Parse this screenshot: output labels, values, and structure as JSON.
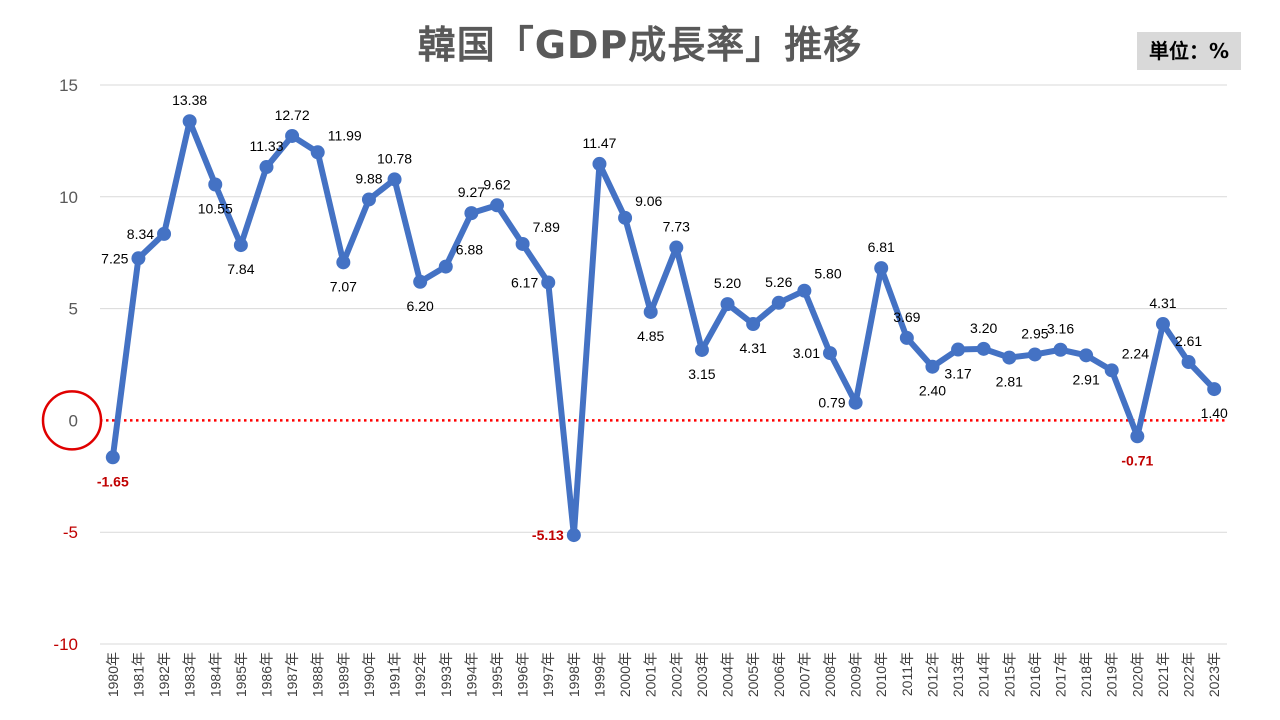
{
  "chart_data": {
    "type": "line",
    "title": "韓国「GDP成長率」推移",
    "unit": "単位：%",
    "xlabel": "",
    "ylabel": "",
    "ylim": [
      -10,
      15
    ],
    "yticks": [
      15,
      10,
      5,
      0,
      -5,
      -10
    ],
    "grid": true,
    "zero_line": {
      "value": 0,
      "style": "dotted",
      "color": "#ff0000"
    },
    "highlight": {
      "value": 0,
      "shape": "circle",
      "color": "#e00000"
    },
    "series": [
      {
        "name": "GDP成長率",
        "color": "#4472c4",
        "values": [
          -1.65,
          7.25,
          8.34,
          13.38,
          10.55,
          7.84,
          11.33,
          12.72,
          11.99,
          7.07,
          9.88,
          10.78,
          6.2,
          6.88,
          9.27,
          9.62,
          7.89,
          6.17,
          -5.13,
          11.47,
          9.06,
          4.85,
          7.73,
          3.15,
          5.2,
          4.31,
          5.26,
          5.8,
          3.01,
          0.79,
          6.81,
          3.69,
          2.4,
          3.17,
          3.2,
          2.81,
          2.95,
          3.16,
          2.91,
          2.24,
          -0.71,
          4.31,
          2.61,
          1.4
        ]
      }
    ],
    "categories": [
      "1980年",
      "1981年",
      "1982年",
      "1983年",
      "1984年",
      "1985年",
      "1986年",
      "1987年",
      "1988年",
      "1989年",
      "1990年",
      "1991年",
      "1992年",
      "1993年",
      "1994年",
      "1995年",
      "1996年",
      "1997年",
      "1998年",
      "1999年",
      "2000年",
      "2001年",
      "2002年",
      "2003年",
      "2004年",
      "2005年",
      "2006年",
      "2007年",
      "2008年",
      "2009年",
      "2010年",
      "2011年",
      "2012年",
      "2013年",
      "2014年",
      "2015年",
      "2016年",
      "2017年",
      "2018年",
      "2019年",
      "2020年",
      "2021年",
      "2022年",
      "2023年"
    ],
    "data_labels": [
      "-1.65",
      "7.25",
      "8.34",
      "13.38",
      "10.55",
      "7.84",
      "11.33",
      "12.72",
      "11.99",
      "7.07",
      "9.88",
      "10.78",
      "6.20",
      "6.88",
      "9.27",
      "9.62",
      "7.89",
      "6.17",
      "-5.13",
      "11.47",
      "9.06",
      "4.85",
      "7.73",
      "3.15",
      "5.20",
      "4.31",
      "5.26",
      "5.80",
      "3.01",
      "0.79",
      "6.81",
      "3.69",
      "2.40",
      "3.17",
      "3.20",
      "2.81",
      "2.95",
      "3.16",
      "2.91",
      "2.24",
      "-0.71",
      "4.31",
      "2.61",
      "1.40"
    ],
    "label_side": [
      "below",
      "left",
      "left",
      "above",
      "below",
      "below",
      "above",
      "above",
      "right",
      "below",
      "above",
      "above",
      "below",
      "right",
      "above",
      "above",
      "right",
      "left",
      "left",
      "above",
      "right",
      "below",
      "above",
      "below",
      "above",
      "below",
      "above",
      "right",
      "left",
      "left",
      "above",
      "above",
      "below",
      "below",
      "above",
      "below",
      "above",
      "above",
      "below",
      "right",
      "below",
      "above",
      "above",
      "below"
    ]
  }
}
